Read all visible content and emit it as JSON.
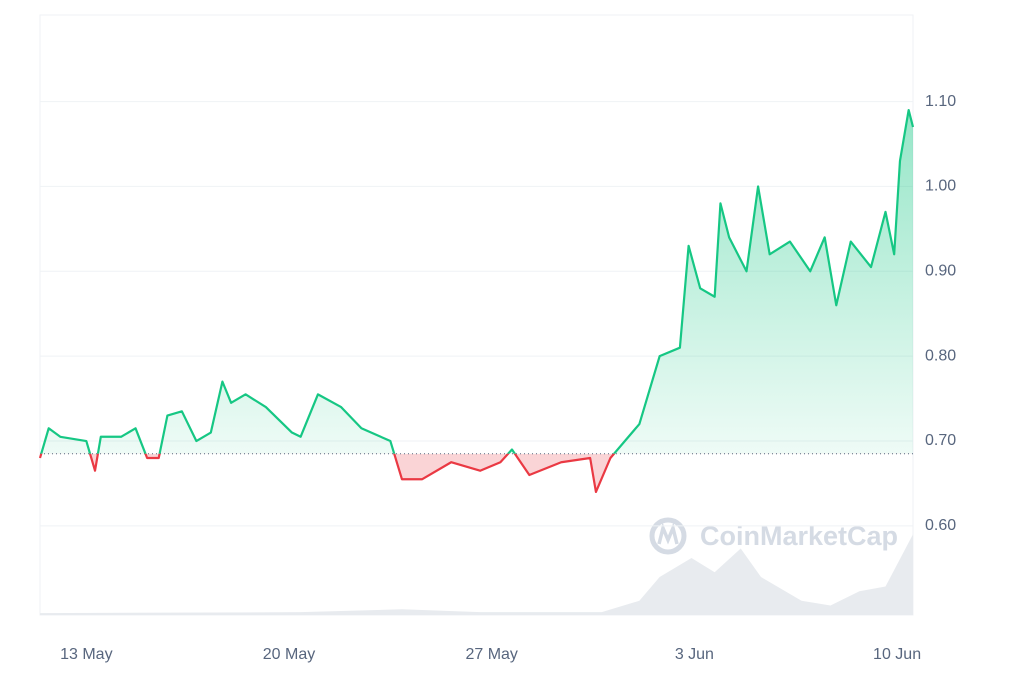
{
  "chart_data": {
    "type": "line",
    "series": [
      {
        "color": "#16c784",
        "down_color": "#ea3943",
        "x": [
          -1.6,
          -1.3,
          -0.9,
          0,
          0.3,
          0.5,
          1.2,
          1.7,
          2.1,
          2.5,
          2.8,
          3.3,
          3.8,
          4.3,
          4.7,
          5,
          5.5,
          6.2,
          7.1,
          7.4,
          8,
          8.8,
          9.5,
          10.5,
          10.9,
          11.6,
          12.6,
          13.6,
          14.3,
          14.7,
          15.3,
          16.4,
          17.4,
          17.6,
          18.1,
          18.6,
          19.1,
          19.8,
          20.5,
          20.8,
          21.2,
          21.7,
          21.9,
          22.2,
          22.8,
          23.2,
          23.6,
          24.3,
          25,
          25.5,
          25.9,
          26.4,
          27.1,
          27.6,
          27.9,
          28.1,
          28.4,
          28.55
        ],
        "values": [
          0.68,
          0.715,
          0.705,
          0.7,
          0.665,
          0.705,
          0.705,
          0.715,
          0.68,
          0.68,
          0.73,
          0.735,
          0.7,
          0.71,
          0.77,
          0.745,
          0.755,
          0.74,
          0.71,
          0.705,
          0.755,
          0.74,
          0.715,
          0.7,
          0.655,
          0.655,
          0.675,
          0.665,
          0.675,
          0.69,
          0.66,
          0.675,
          0.68,
          0.64,
          0.68,
          0.7,
          0.72,
          0.8,
          0.81,
          0.93,
          0.88,
          0.87,
          0.98,
          0.94,
          0.9,
          1.0,
          0.92,
          0.935,
          0.9,
          0.94,
          0.86,
          0.935,
          0.905,
          0.97,
          0.92,
          1.03,
          1.09,
          1.07
        ]
      }
    ],
    "baseline": 0.685,
    "volume": {
      "color": "#e8ebef",
      "x": [
        -1.6,
        7.4,
        10.9,
        13.6,
        17.8,
        19.1,
        19.8,
        20.9,
        21.7,
        22.6,
        23.3,
        24.7,
        25.7,
        26.7,
        27.6,
        28.55
      ],
      "values": [
        2,
        3,
        6,
        3,
        3,
        15,
        40,
        60,
        45,
        70,
        40,
        15,
        10,
        25,
        30,
        85
      ],
      "y2lim": [
        0,
        100
      ]
    },
    "watermark": "CoinMarketCap",
    "xlim": [
      -1.6,
      28.55
    ],
    "xticks": [
      {
        "value": 0,
        "label": "13 May"
      },
      {
        "value": 7,
        "label": "20 May"
      },
      {
        "value": 14,
        "label": "27 May"
      },
      {
        "value": 21,
        "label": "3 Jun"
      },
      {
        "value": 28,
        "label": "10 Jun"
      }
    ],
    "ylim": [
      0.495,
      1.202
    ],
    "yticks": [
      {
        "value": 0.6,
        "label": "0.60"
      },
      {
        "value": 0.7,
        "label": "0.70"
      },
      {
        "value": 0.8,
        "label": "0.80"
      },
      {
        "value": 0.9,
        "label": "0.90"
      },
      {
        "value": 1.0,
        "label": "1.00"
      },
      {
        "value": 1.1,
        "label": "1.10"
      }
    ],
    "grid": true
  }
}
